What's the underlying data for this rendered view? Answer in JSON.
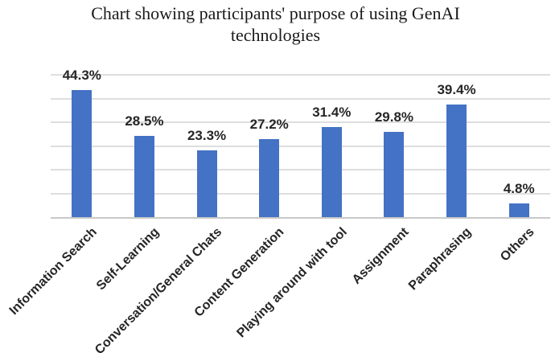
{
  "chart_data": {
    "type": "bar",
    "title": "Chart showing participants' purpose of using GenAI technologies",
    "title_lines": [
      "Chart showing participants' purpose of using GenAI",
      "technologies"
    ],
    "categories": [
      "Information Search",
      "Self-Learning",
      "Conversation/General Chats",
      "Content Generation",
      "Playing around with tool",
      "Assignment",
      "Paraphrasing",
      "Others"
    ],
    "values": [
      44.3,
      28.5,
      23.3,
      27.2,
      31.4,
      29.8,
      39.4,
      4.8
    ],
    "value_labels": [
      "44.3%",
      "28.5%",
      "23.3%",
      "27.2%",
      "31.4%",
      "29.8%",
      "39.4%",
      "4.8%"
    ],
    "xlabel": "",
    "ylabel": "",
    "ylim": [
      0,
      50
    ],
    "grid": true,
    "legend": "none",
    "colors": {
      "bar": "#4472C4",
      "gridline": "#DEDEDE",
      "axis": "#C8C8C8",
      "label": "#262626",
      "title": "#1A1A1A"
    }
  }
}
